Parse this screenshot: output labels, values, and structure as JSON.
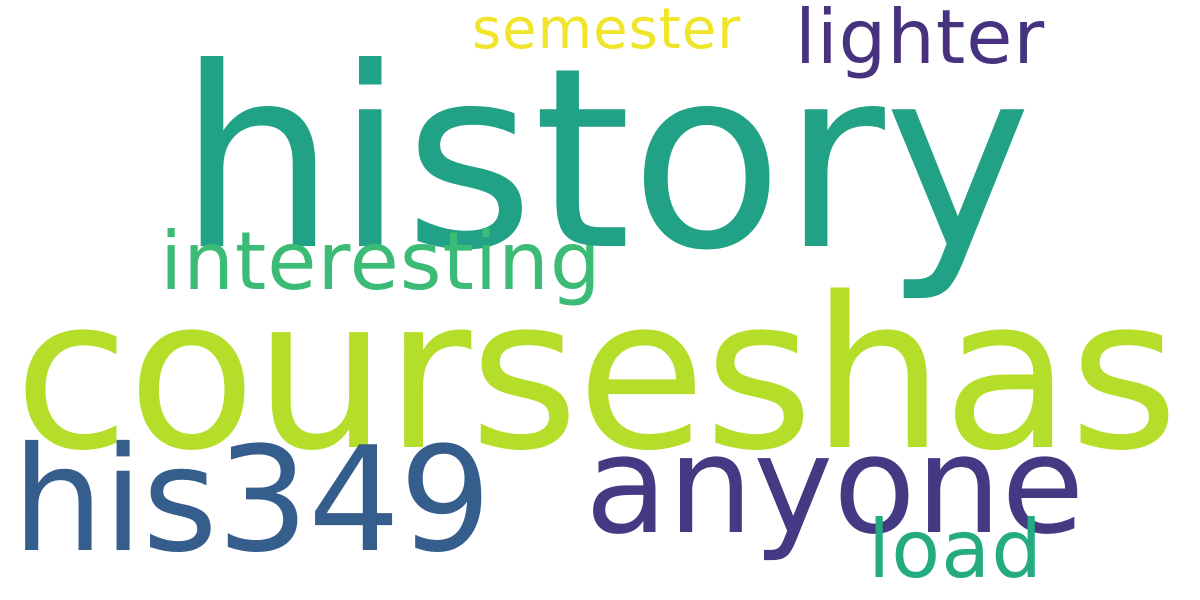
{
  "words": {
    "history": {
      "text": "history",
      "color": "#21A185"
    },
    "courseshas": {
      "text": "courseshas",
      "color": "#B5DE2B"
    },
    "anyone": {
      "text": "anyone",
      "color": "#443983"
    },
    "his349": {
      "text": "his349",
      "color": "#355E8D"
    },
    "interesting": {
      "text": "interesting",
      "color": "#3BBB75"
    },
    "lighter": {
      "text": "lighter",
      "color": "#46327E"
    },
    "semester": {
      "text": "semester",
      "color": "#F0E52A"
    },
    "load": {
      "text": "load",
      "color": "#25AB82"
    }
  }
}
